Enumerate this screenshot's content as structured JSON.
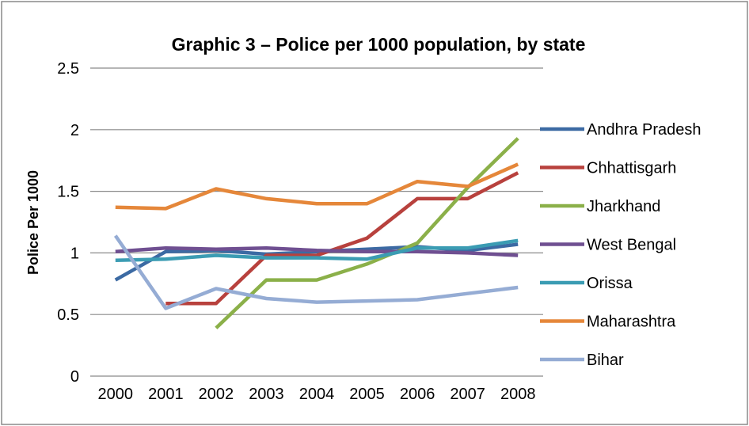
{
  "chart_data": {
    "type": "line",
    "title": "Graphic 3 – Police per 1000 population, by state",
    "xlabel": "",
    "ylabel": "Police Per 1000",
    "ylim": [
      0,
      2.5
    ],
    "yticks": [
      "0",
      "0.5",
      "1",
      "1.5",
      "2",
      "2.5"
    ],
    "grid": true,
    "legend": "right",
    "categories": [
      "2000",
      "2001",
      "2002",
      "2003",
      "2004",
      "2005",
      "2006",
      "2007",
      "2008"
    ],
    "series": [
      {
        "name": "Andhra Pradesh",
        "color": "#3c6aa3",
        "values": [
          0.78,
          1.01,
          1.02,
          0.99,
          1.01,
          1.03,
          1.05,
          1.02,
          1.07
        ]
      },
      {
        "name": "Chhattisgarh",
        "color": "#b8413d",
        "values": [
          null,
          0.59,
          0.59,
          0.98,
          0.98,
          1.12,
          1.44,
          1.44,
          1.65
        ]
      },
      {
        "name": "Jharkhand",
        "color": "#8bb049",
        "values": [
          null,
          null,
          0.39,
          0.78,
          0.78,
          0.91,
          1.08,
          1.53,
          1.93
        ]
      },
      {
        "name": "West Bengal",
        "color": "#6f4f91",
        "values": [
          1.01,
          1.04,
          1.03,
          1.04,
          1.02,
          1.01,
          1.01,
          1.0,
          0.98
        ]
      },
      {
        "name": "Orissa",
        "color": "#3b9cb3",
        "values": [
          0.94,
          0.95,
          0.98,
          0.96,
          0.96,
          0.95,
          1.04,
          1.04,
          1.1
        ]
      },
      {
        "name": "Maharashtra",
        "color": "#e5873a",
        "values": [
          1.37,
          1.36,
          1.52,
          1.44,
          1.4,
          1.4,
          1.58,
          1.54,
          1.72
        ]
      },
      {
        "name": "Bihar",
        "color": "#95acd4",
        "values": [
          1.14,
          0.55,
          0.71,
          0.63,
          0.6,
          0.61,
          0.62,
          0.67,
          0.72
        ]
      }
    ]
  }
}
